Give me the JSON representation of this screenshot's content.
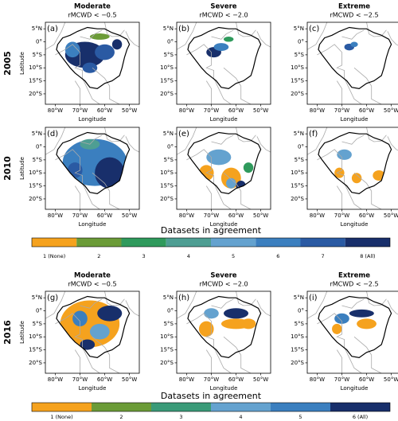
{
  "rows": [
    {
      "year": "2005",
      "panels": [
        {
          "letter": "(a)",
          "title": "Moderate",
          "subtitle": "rMCWD < −0.5"
        },
        {
          "letter": "(b)",
          "title": "Severe",
          "subtitle": "rMCWD < −2.0"
        },
        {
          "letter": "(c)",
          "title": "Extreme",
          "subtitle": "rMCWD < −2.5"
        }
      ]
    },
    {
      "year": "2010",
      "panels": [
        {
          "letter": "(d)"
        },
        {
          "letter": "(e)"
        },
        {
          "letter": "(f)"
        }
      ]
    },
    {
      "year": "2016",
      "panels": [
        {
          "letter": "(g)",
          "title": "Moderate",
          "subtitle": "rMCWD < −0.5"
        },
        {
          "letter": "(h)",
          "title": "Severe",
          "subtitle": "rMCWD < −2.0"
        },
        {
          "letter": "(i)",
          "title": "Extreme",
          "subtitle": "rMCWD < −2.5"
        }
      ]
    }
  ],
  "axes": {
    "xlabel": "Longitude",
    "ylabel": "Latitude",
    "xlim": [
      -84,
      -46
    ],
    "ylim": [
      -24,
      7.5
    ],
    "xticks": [
      {
        "value": -80,
        "label": "80°W"
      },
      {
        "value": -70,
        "label": "70°W"
      },
      {
        "value": -60,
        "label": "60°W"
      },
      {
        "value": -50,
        "label": "50°W"
      }
    ],
    "yticks": [
      {
        "value": 5,
        "label": "5°N"
      },
      {
        "value": 0,
        "label": "0°"
      },
      {
        "value": -5,
        "label": "5°S"
      },
      {
        "value": -10,
        "label": "10°S"
      },
      {
        "value": -15,
        "label": "15°S"
      },
      {
        "value": -20,
        "label": "20°S"
      }
    ]
  },
  "colorbars": [
    {
      "title": "Datasets in agreement",
      "labels": [
        "1 (None)",
        "2",
        "3",
        "4",
        "5",
        "6",
        "7",
        "8 (All)"
      ],
      "colors": [
        "#f5a21e",
        "#6b9b37",
        "#2f9a5c",
        "#4e9e93",
        "#64a2cf",
        "#3b7fbf",
        "#2a5aa3",
        "#182f6b"
      ]
    },
    {
      "title": "Datasets in agreement",
      "labels": [
        "1 (None)",
        "2",
        "3",
        "4",
        "5",
        "6 (All)"
      ],
      "colors": [
        "#f5a21e",
        "#6b9b37",
        "#3a9a78",
        "#64a2cf",
        "#3b7fbf",
        "#182f6b"
      ]
    }
  ]
}
